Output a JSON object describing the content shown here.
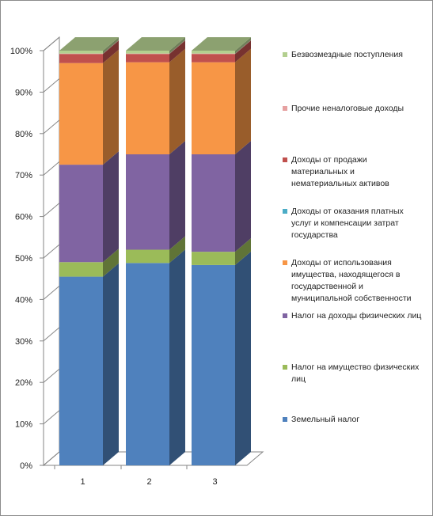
{
  "chart_data": {
    "type": "bar",
    "stacked": true,
    "percent": true,
    "three_d": true,
    "title": "",
    "xlabel": "",
    "ylabel": "",
    "ylim": [
      0,
      100
    ],
    "y_ticks": [
      "0%",
      "10%",
      "20%",
      "30%",
      "40%",
      "50%",
      "60%",
      "70%",
      "80%",
      "90%",
      "100%"
    ],
    "categories": [
      "1",
      "2",
      "3"
    ],
    "legend_position": "right",
    "series": [
      {
        "name": "Земельный налог",
        "color": "#4f81bd",
        "values": [
          45.5,
          48.8,
          48.3
        ]
      },
      {
        "name": "Налог на имущество физических лиц",
        "color": "#9bbb59",
        "values": [
          3.5,
          3.2,
          3.2
        ]
      },
      {
        "name": "Налог на доходы физических лиц",
        "color": "#8064a2",
        "values": [
          23.5,
          23.0,
          23.5
        ]
      },
      {
        "name": "Доходы от использования имущества, находящегося в государственной и муниципальной собственности",
        "color": "#f79646",
        "values": [
          24.5,
          22.2,
          22.2
        ]
      },
      {
        "name": "Доходы от оказания платных услуг и компенсации затрат государства",
        "color": "#4bacc6",
        "values": [
          0.0,
          0.0,
          0.0
        ]
      },
      {
        "name": "Доходы от продажи материальных и нематериальных активов",
        "color": "#c0504d",
        "values": [
          2.2,
          2.0,
          2.0
        ]
      },
      {
        "name": "Прочие неналоговые доходы",
        "color": "#e6a1a1",
        "values": [
          0.1,
          0.1,
          0.1
        ]
      },
      {
        "name": "Безвозмездные поступления",
        "color": "#b3cf8f",
        "values": [
          0.7,
          0.7,
          0.7
        ]
      }
    ]
  }
}
